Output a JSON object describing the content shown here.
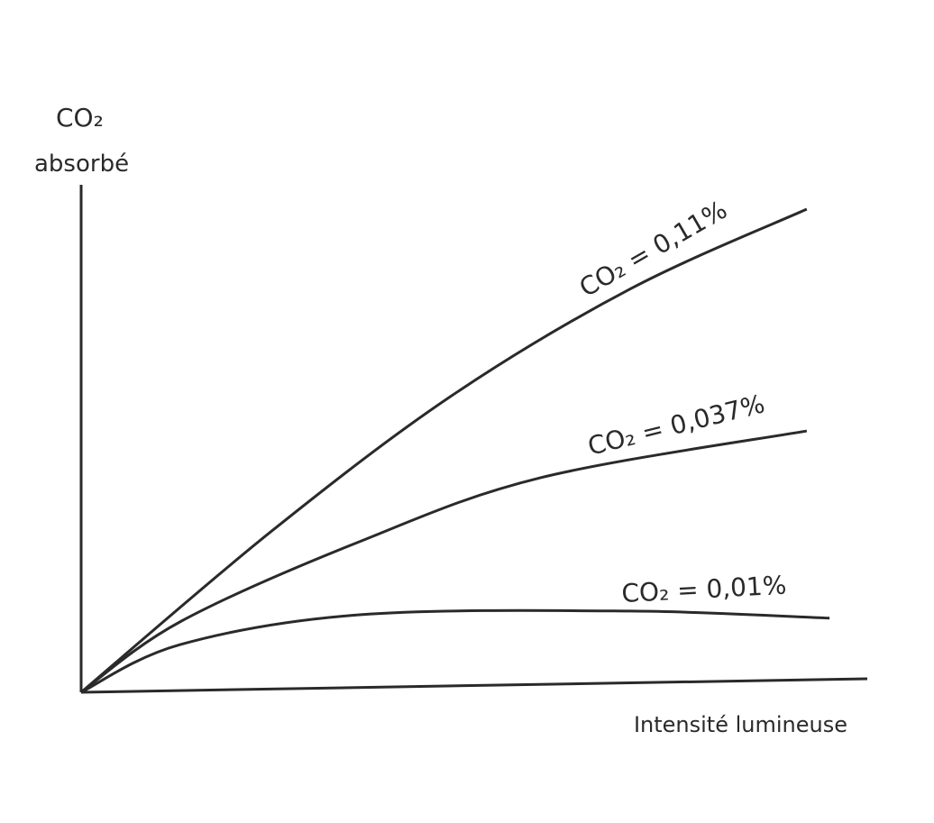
{
  "chart_data": {
    "type": "line",
    "y_label": [
      "CO₂",
      "absorbé"
    ],
    "x_label": "Intensité lumineuse",
    "xlim": [
      0,
      100
    ],
    "ylim": [
      0,
      100
    ],
    "series": [
      {
        "name": "CO₂ = 0,11%",
        "color": "#2a2a2a",
        "x": [
          0,
          24.1,
          47.0,
          70.0,
          92.3
        ],
        "values": [
          0,
          31.6,
          58.3,
          79.6,
          95.2
        ]
      },
      {
        "name": "CO₂ = 0,037%",
        "color": "#2a2a2a",
        "x": [
          0,
          12.6,
          35.6,
          58.5,
          92.3
        ],
        "values": [
          0,
          13.9,
          29.8,
          42.3,
          51.5
        ]
      },
      {
        "name": "CO₂ = 0,01%",
        "color": "#2a2a2a",
        "x": [
          0,
          12.6,
          35.6,
          70.0,
          95.2
        ],
        "values": [
          0,
          9.4,
          15.3,
          16.0,
          14.6
        ]
      }
    ]
  }
}
